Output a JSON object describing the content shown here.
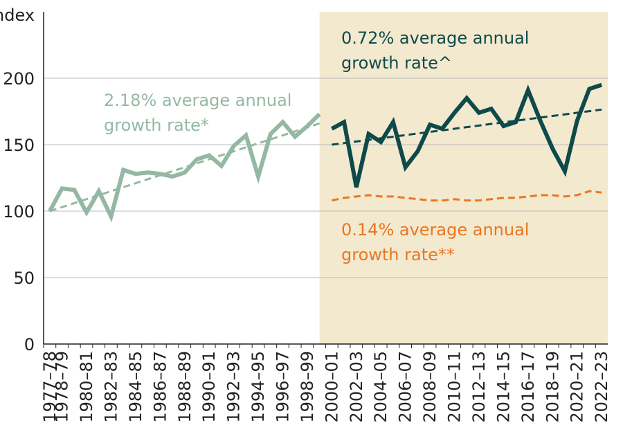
{
  "chart_data": {
    "type": "line",
    "y_label": "Index",
    "categories": [
      "1977–78",
      "1978–79",
      null,
      "1980–81",
      null,
      "1982–83",
      null,
      "1984–85",
      null,
      "1986–87",
      null,
      "1988–89",
      null,
      "1990–91",
      null,
      "1992–93",
      null,
      "1994–95",
      null,
      "1996–97",
      null,
      "1998–99",
      null,
      "2000–01",
      null,
      "2002–03",
      null,
      "2004–05",
      null,
      "2006–07",
      null,
      "2008–09",
      null,
      "2010–11",
      null,
      "2012–13",
      null,
      "2014–15",
      null,
      "2016–17",
      null,
      "2018–19",
      null,
      "2020–21",
      null,
      "2022–23"
    ],
    "series": [
      {
        "color": "#94b8a3",
        "dashed": true,
        "values": [
          100,
          103,
          106,
          109,
          112,
          115,
          118,
          121,
          124,
          127,
          130,
          133,
          136,
          139,
          142,
          145,
          148,
          151,
          154,
          157,
          160,
          163,
          166,
          null,
          null,
          null,
          null,
          null,
          null,
          null,
          null,
          null,
          null,
          null,
          null,
          null,
          null,
          null,
          null,
          null,
          null,
          null,
          null,
          null,
          null,
          null
        ]
      },
      {
        "color": "#94b8a3",
        "dashed": false,
        "values": [
          100,
          117,
          116,
          99,
          115,
          96,
          131,
          128,
          129,
          128,
          126,
          129,
          139,
          142,
          134,
          149,
          157,
          126,
          158,
          167,
          156,
          164,
          173,
          null,
          null,
          null,
          null,
          null,
          null,
          null,
          null,
          null,
          null,
          null,
          null,
          null,
          null,
          null,
          null,
          null,
          null,
          null,
          null,
          null,
          null,
          null
        ]
      },
      {
        "color": "#0e4a4a",
        "dashed": true,
        "values": [
          null,
          null,
          null,
          null,
          null,
          null,
          null,
          null,
          null,
          null,
          null,
          null,
          null,
          null,
          null,
          null,
          null,
          null,
          null,
          null,
          null,
          null,
          null,
          150,
          151.2,
          152.4,
          153.6,
          154.8,
          156,
          157.2,
          158.4,
          159.6,
          160.8,
          162,
          163.2,
          164.4,
          165.6,
          166.8,
          168,
          169.2,
          170.4,
          171.6,
          172.8,
          174,
          175.2,
          176.4
        ]
      },
      {
        "color": "#0e4a4a",
        "dashed": false,
        "values": [
          null,
          null,
          null,
          null,
          null,
          null,
          null,
          null,
          null,
          null,
          null,
          null,
          null,
          null,
          null,
          null,
          null,
          null,
          null,
          null,
          null,
          null,
          null,
          162,
          167,
          118,
          158,
          152,
          167,
          133,
          145,
          165,
          162,
          174,
          185,
          174,
          177,
          164,
          167,
          191,
          168,
          147,
          130,
          168,
          192,
          195
        ]
      },
      {
        "color": "#e87722",
        "dashed": true,
        "values": [
          null,
          null,
          null,
          null,
          null,
          null,
          null,
          null,
          null,
          null,
          null,
          null,
          null,
          null,
          null,
          null,
          null,
          null,
          null,
          null,
          null,
          null,
          null,
          108,
          110,
          111,
          112,
          111,
          111,
          110,
          109,
          108,
          108,
          109,
          108,
          108,
          109,
          110,
          110,
          111,
          112,
          112,
          111,
          112,
          115,
          114
        ]
      }
    ],
    "shade_from": "2000–01",
    "shade_color": "#f3e9cf",
    "annotations": [
      {
        "lines": [
          "2.18% average annual",
          "growth rate*"
        ],
        "color": "#94b8a3"
      },
      {
        "lines": [
          "0.72% average annual",
          "growth rate^"
        ],
        "color": "#0e4a4a"
      },
      {
        "lines": [
          "0.14% average annual",
          "growth rate**"
        ],
        "color": "#e87722"
      }
    ],
    "ylim": [
      0,
      250
    ],
    "yticks": [
      0,
      50,
      100,
      150,
      200
    ],
    "grid": true
  }
}
